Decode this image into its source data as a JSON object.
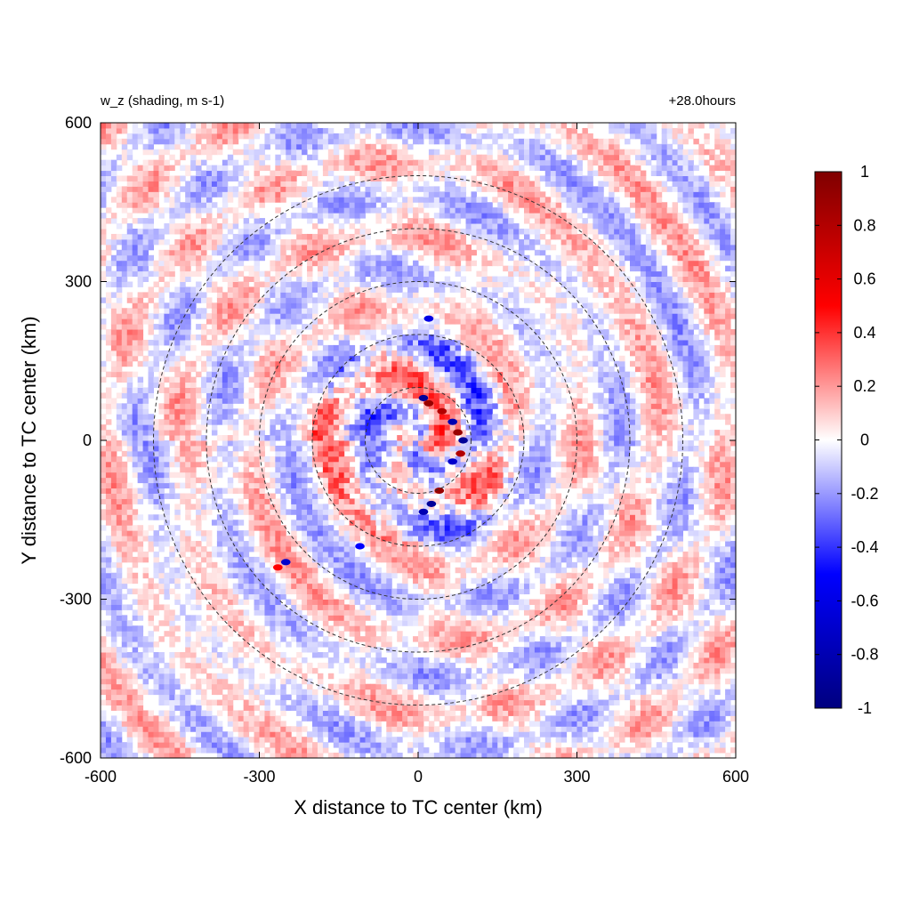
{
  "chart_data": {
    "type": "heatmap",
    "title_left": "w_z (shading, m s-1)",
    "title_right": "+28.0hours",
    "xlabel": "X distance to TC center (km)",
    "ylabel": "Y distance to TC center (km)",
    "xlim": [
      -600,
      600
    ],
    "ylim": [
      -600,
      600
    ],
    "x_ticks": [
      -600,
      -300,
      0,
      300,
      600
    ],
    "y_ticks": [
      -600,
      -300,
      0,
      300,
      600
    ],
    "x_tick_labels": [
      "-600",
      "-300",
      "0",
      "300",
      "600"
    ],
    "y_tick_labels": [
      "-600",
      "-300",
      "0",
      "300",
      "600"
    ],
    "range_circles_km": [
      100,
      200,
      300,
      400,
      500
    ],
    "colorbar": {
      "range": [
        -1,
        1
      ],
      "ticks": [
        1,
        0.8,
        0.6,
        0.4,
        0.2,
        0,
        -0.2,
        -0.4,
        -0.6,
        -0.8,
        -1
      ],
      "tick_labels": [
        "1",
        "0.8",
        "0.6",
        "0.4",
        "0.2",
        "0",
        "-0.2",
        "-0.4",
        "-0.6",
        "-0.8",
        "-1"
      ],
      "colors": [
        "#00007f",
        "#0000ff",
        "#ffffff",
        "#ff0000",
        "#7f0000"
      ]
    },
    "features": [
      {
        "x_km": 10,
        "y_km": 80,
        "w": -0.9
      },
      {
        "x_km": 20,
        "y_km": 70,
        "w": 0.9
      },
      {
        "x_km": 45,
        "y_km": 55,
        "w": 0.8
      },
      {
        "x_km": 65,
        "y_km": 35,
        "w": -0.8
      },
      {
        "x_km": 75,
        "y_km": 15,
        "w": 0.9
      },
      {
        "x_km": 85,
        "y_km": 0,
        "w": -0.9
      },
      {
        "x_km": 80,
        "y_km": -25,
        "w": 0.8
      },
      {
        "x_km": 65,
        "y_km": -40,
        "w": -0.7
      },
      {
        "x_km": 40,
        "y_km": -95,
        "w": 0.9
      },
      {
        "x_km": 25,
        "y_km": -120,
        "w": -0.9
      },
      {
        "x_km": 10,
        "y_km": -135,
        "w": -0.8
      },
      {
        "x_km": -250,
        "y_km": -230,
        "w": -0.7
      },
      {
        "x_km": -265,
        "y_km": -240,
        "w": 0.5
      },
      {
        "x_km": 20,
        "y_km": 230,
        "w": -0.6
      },
      {
        "x_km": -110,
        "y_km": -200,
        "w": -0.5
      }
    ]
  }
}
